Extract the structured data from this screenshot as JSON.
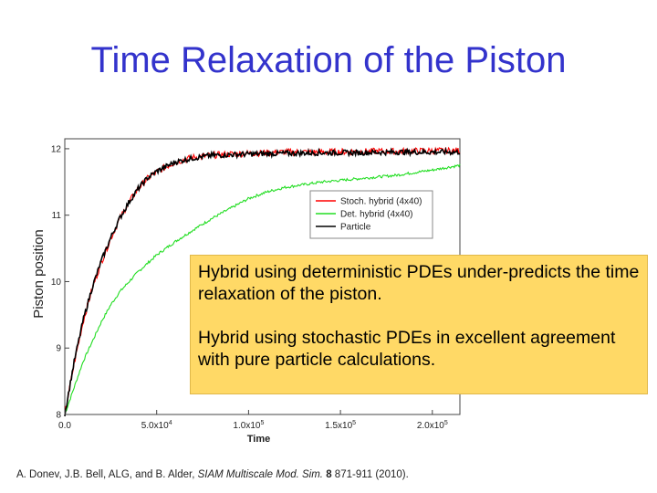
{
  "slide": {
    "title": "Time Relaxation of the Piston"
  },
  "callout": {
    "line1": "Hybrid using deterministic PDEs under-predicts the time relaxation of the piston.",
    "line2": "Hybrid using stochastic PDEs in excellent agreement with pure particle calculations."
  },
  "citation": {
    "authors": "A. Donev, J.B. Bell, ALG, and B. Alder, ",
    "journal": "SIAM Multiscale Mod. Sim.",
    "volume": "8",
    "pages": " 871-911 (2010)."
  },
  "chart_data": {
    "type": "line",
    "xlabel": "Time",
    "ylabel": "Piston position",
    "xlim": [
      0,
      215000
    ],
    "ylim": [
      8,
      12.15
    ],
    "xticks": [
      {
        "value": 0,
        "label": "0.0"
      },
      {
        "value": 50000,
        "label": "5.0x10",
        "exp": "4"
      },
      {
        "value": 100000,
        "label": "1.0x10",
        "exp": "5"
      },
      {
        "value": 150000,
        "label": "1.5x10",
        "exp": "5"
      },
      {
        "value": 200000,
        "label": "2.0x10",
        "exp": "5"
      }
    ],
    "yticks": [
      {
        "value": 8,
        "label": "8"
      },
      {
        "value": 9,
        "label": "9"
      },
      {
        "value": 10,
        "label": "10"
      },
      {
        "value": 11,
        "label": "11"
      },
      {
        "value": 12,
        "label": "12"
      }
    ],
    "legend_position": "upper-right",
    "grid": false,
    "series": [
      {
        "name": "Stoch. hybrid (4x40)",
        "color": "#ff0000",
        "x": [
          0,
          5000,
          10000,
          15000,
          20000,
          25000,
          30000,
          35000,
          40000,
          45000,
          50000,
          60000,
          70000,
          80000,
          90000,
          100000,
          120000,
          140000,
          160000,
          180000,
          200000,
          215000
        ],
        "y": [
          8.0,
          8.75,
          9.4,
          9.9,
          10.3,
          10.65,
          10.95,
          11.2,
          11.4,
          11.55,
          11.65,
          11.8,
          11.87,
          11.9,
          11.92,
          11.93,
          11.95,
          11.95,
          11.96,
          11.96,
          11.97,
          11.97
        ]
      },
      {
        "name": "Det. hybrid (4x40)",
        "color": "#22dd22",
        "x": [
          0,
          5000,
          10000,
          15000,
          20000,
          25000,
          30000,
          40000,
          50000,
          60000,
          70000,
          80000,
          90000,
          100000,
          110000,
          120000,
          140000,
          160000,
          180000,
          200000,
          215000
        ],
        "y": [
          8.0,
          8.4,
          8.8,
          9.1,
          9.4,
          9.65,
          9.85,
          10.15,
          10.4,
          10.6,
          10.78,
          10.95,
          11.1,
          11.25,
          11.35,
          11.42,
          11.5,
          11.55,
          11.6,
          11.68,
          11.75
        ]
      },
      {
        "name": "Particle",
        "color": "#000000",
        "x": [
          0,
          5000,
          10000,
          15000,
          20000,
          25000,
          30000,
          35000,
          40000,
          45000,
          50000,
          60000,
          70000,
          80000,
          90000,
          100000,
          120000,
          140000,
          160000,
          180000,
          200000,
          215000
        ],
        "y": [
          8.0,
          8.78,
          9.42,
          9.92,
          10.32,
          10.66,
          10.96,
          11.2,
          11.4,
          11.56,
          11.66,
          11.8,
          11.86,
          11.9,
          11.91,
          11.92,
          11.93,
          11.94,
          11.94,
          11.95,
          11.95,
          11.95
        ]
      }
    ]
  }
}
